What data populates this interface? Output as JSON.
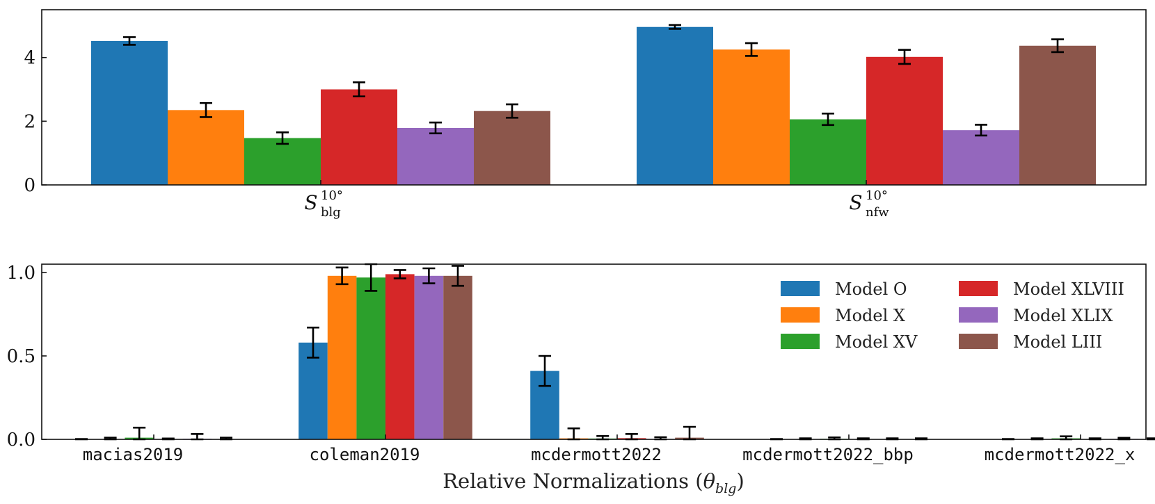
{
  "colors": [
    "#1f77b4",
    "#ff7f0e",
    "#2ca02c",
    "#d62728",
    "#9467bd",
    "#8c564b"
  ],
  "legend": {
    "items": [
      "Model O",
      "Model X",
      "Model XV",
      "Model XLVIII",
      "Model XLIX",
      "Model LIII"
    ],
    "placement": "upper-right (bottom panel)",
    "columns": 2
  },
  "chart_data": [
    {
      "type": "bar",
      "grouped": true,
      "categories": [
        {
          "base": "S",
          "sup": "10°",
          "sub": "blg"
        },
        {
          "base": "S",
          "sup": "10°",
          "sub": "nfw"
        }
      ],
      "series": [
        {
          "name": "Model O",
          "values": [
            4.52,
            4.96
          ],
          "errors": [
            0.12,
            0.06
          ]
        },
        {
          "name": "Model X",
          "values": [
            2.35,
            4.25
          ],
          "errors": [
            0.22,
            0.2
          ]
        },
        {
          "name": "Model XV",
          "values": [
            1.47,
            2.06
          ],
          "errors": [
            0.18,
            0.18
          ]
        },
        {
          "name": "Model XLVIII",
          "values": [
            3.0,
            4.02
          ],
          "errors": [
            0.22,
            0.22
          ]
        },
        {
          "name": "Model XLIX",
          "values": [
            1.79,
            1.72
          ],
          "errors": [
            0.17,
            0.17
          ]
        },
        {
          "name": "Model LIII",
          "values": [
            2.32,
            4.37
          ],
          "errors": [
            0.21,
            0.2
          ]
        }
      ],
      "ylim": [
        0,
        5.5
      ],
      "yticks": [
        0,
        2,
        4
      ],
      "ytick_labels": [
        "0",
        "2",
        "4"
      ],
      "xlabel": "",
      "ylabel": ""
    },
    {
      "type": "bar",
      "grouped": true,
      "categories": [
        "macias2019",
        "coleman2019",
        "mcdermott2022",
        "mcdermott2022_bbp",
        "mcdermott2022_x"
      ],
      "series": [
        {
          "name": "Model O",
          "values": [
            0.0,
            0.58,
            0.41,
            0.0,
            0.0
          ],
          "errors": [
            0.002,
            0.09,
            0.09,
            0.002,
            0.002
          ]
        },
        {
          "name": "Model X",
          "values": [
            0.002,
            0.98,
            0.006,
            0.002,
            0.002
          ],
          "errors": [
            0.008,
            0.05,
            0.06,
            0.004,
            0.004
          ]
        },
        {
          "name": "Model XV",
          "values": [
            0.01,
            0.97,
            0.005,
            0.004,
            0.006
          ],
          "errors": [
            0.06,
            0.08,
            0.015,
            0.008,
            0.012
          ]
        },
        {
          "name": "Model XLVIII",
          "values": [
            0.001,
            0.99,
            0.007,
            0.002,
            0.002
          ],
          "errors": [
            0.004,
            0.025,
            0.025,
            0.004,
            0.004
          ]
        },
        {
          "name": "Model XLIX",
          "values": [
            0.004,
            0.98,
            0.003,
            0.002,
            0.003
          ],
          "errors": [
            0.028,
            0.045,
            0.01,
            0.004,
            0.006
          ]
        },
        {
          "name": "Model LIII",
          "values": [
            0.002,
            0.98,
            0.01,
            0.002,
            0.002
          ],
          "errors": [
            0.008,
            0.06,
            0.065,
            0.004,
            0.004
          ]
        }
      ],
      "ylim": [
        0,
        1.05
      ],
      "yticks": [
        0.0,
        0.5,
        1.0
      ],
      "ytick_labels": [
        "0.0",
        "0.5",
        "1.0"
      ],
      "xlabel": "Relative Normalizations (θblg)",
      "xlabel_parts": {
        "text": "Relative Normalizations (",
        "symbol": "θ",
        "sub": "blg",
        "close": ")"
      },
      "ylabel": ""
    }
  ]
}
